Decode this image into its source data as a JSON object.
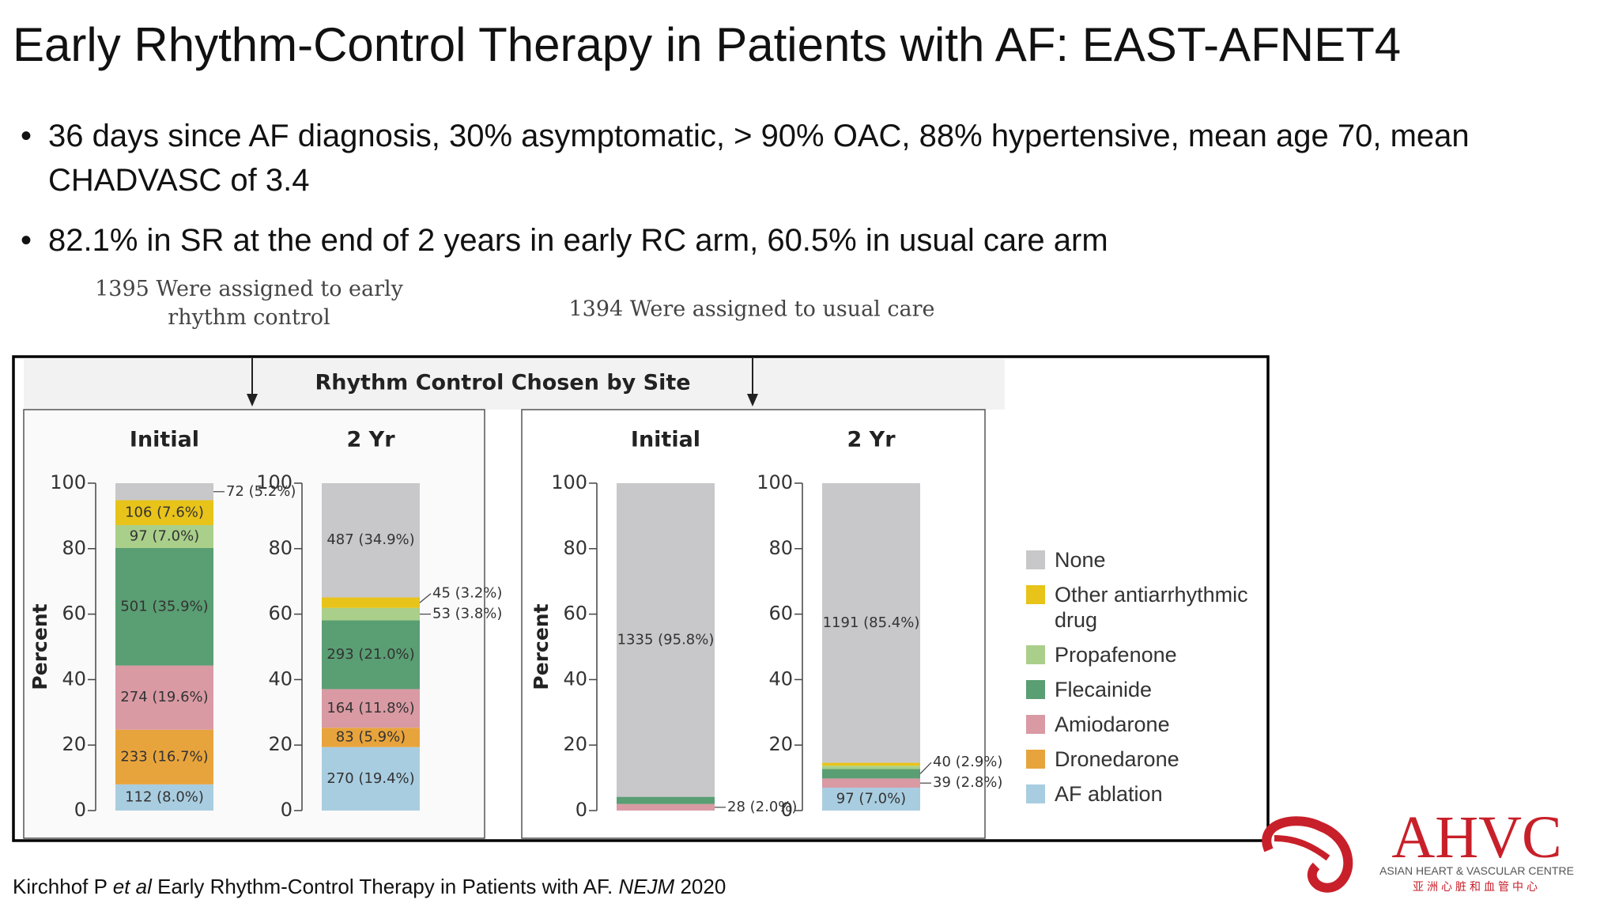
{
  "title": "Early Rhythm-Control Therapy in Patients with AF: EAST-AFNET4",
  "bullets": [
    "36 days since AF diagnosis, 30% asymptomatic, > 90% OAC, 88% hypertensive, mean age 70, mean CHADVASC of 3.4",
    "82.1% in SR at the end of 2 years in early RC arm, 60.5% in usual care arm"
  ],
  "citation": {
    "author": "Kirchhof P",
    "etal": "et al",
    "text": "Early Rhythm-Control Therapy in Patients with AF.",
    "journal": "NEJM",
    "year": "2020"
  },
  "logo": {
    "name": "AHVC",
    "english": "ASIAN HEART & VASCULAR CENTRE",
    "chinese": "亚洲心脏和血管中心"
  },
  "chart_data": {
    "type": "bar",
    "stacked": true,
    "subtitle": "Rhythm Control Chosen by Site",
    "group_labels": [
      "1395 Were assigned to early rhythm control",
      "1394 Were assigned to usual care"
    ],
    "ylabel": "Percent",
    "categories": [
      "Initial",
      "2 Yr",
      "Initial",
      "2 Yr"
    ],
    "ylim": [
      0,
      100
    ],
    "yticks": [
      0,
      20,
      40,
      60,
      80,
      100
    ],
    "grid": false,
    "series": [
      {
        "name": "None",
        "color": "#c8c8ca",
        "values": [
          5.2,
          34.9,
          95.8,
          85.4
        ],
        "value_labels": [
          "72 (5.2%)",
          "487 (34.9%)",
          "1335 (95.8%)",
          "1191 (85.4%)"
        ]
      },
      {
        "name": "Other antiarrhythmic drug",
        "color": "#e8c31a",
        "values": [
          7.6,
          3.2,
          null,
          0.9
        ],
        "value_labels": [
          "106 (7.6%)",
          "45 (3.2%)",
          null,
          null
        ]
      },
      {
        "name": "Propafenone",
        "color": "#a9cf8a",
        "values": [
          7.0,
          3.8,
          null,
          1.0
        ],
        "value_labels": [
          "97 (7.0%)",
          "53 (3.8%)",
          null,
          null
        ]
      },
      {
        "name": "Flecainide",
        "color": "#5a9e73",
        "values": [
          35.9,
          21.0,
          2.2,
          2.9
        ],
        "value_labels": [
          "501 (35.9%)",
          "293 (21.0%)",
          null,
          "40 (2.9%)"
        ]
      },
      {
        "name": "Amiodarone",
        "color": "#d99aa4",
        "values": [
          19.6,
          11.8,
          2.0,
          2.8
        ],
        "value_labels": [
          "274 (19.6%)",
          "164 (11.8%)",
          "28 (2.0%)",
          "39 (2.8%)"
        ]
      },
      {
        "name": "Dronedarone",
        "color": "#e8a43c",
        "values": [
          16.7,
          5.9,
          null,
          null
        ],
        "value_labels": [
          "233 (16.7%)",
          "83 (5.9%)",
          null,
          null
        ]
      },
      {
        "name": "AF ablation",
        "color": "#a9cde0",
        "values": [
          8.0,
          19.4,
          null,
          7.0
        ],
        "value_labels": [
          "112 (8.0%)",
          "270 (19.4%)",
          null,
          "97 (7.0%)"
        ]
      }
    ]
  }
}
